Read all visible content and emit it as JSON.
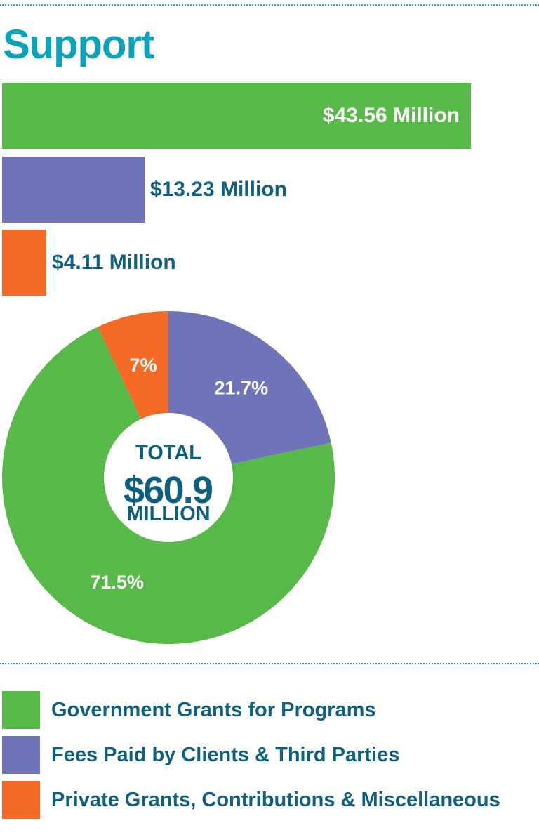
{
  "chart_data": [
    {
      "type": "bar",
      "orientation": "horizontal",
      "title": "Support",
      "unit": "Million USD",
      "categories": [
        "Government Grants for Programs",
        "Fees Paid by Clients & Third Parties",
        "Private Grants, Contributions & Miscellaneous"
      ],
      "values": [
        43.56,
        13.23,
        4.11
      ],
      "data_labels": [
        "$43.56 Million",
        "$13.23 Million",
        "$4.11 Million"
      ],
      "colors": [
        "#57b947",
        "#6f74b8",
        "#f26a25"
      ]
    },
    {
      "type": "pie",
      "style": "donut",
      "categories": [
        "Fees Paid by Clients & Third Parties",
        "Government Grants for Programs",
        "Private Grants, Contributions & Miscellaneous"
      ],
      "values": [
        21.7,
        71.5,
        7
      ],
      "data_labels": [
        "21.7%",
        "71.5%",
        "7%"
      ],
      "colors": [
        "#6f74b8",
        "#57b947",
        "#f26a25"
      ],
      "center_label": {
        "line1": "TOTAL",
        "line2": "$60.9",
        "line3": "MILLION"
      }
    }
  ],
  "legend": {
    "placement": "bottom",
    "items": [
      {
        "label": "Government Grants for Programs",
        "color": "#57b947"
      },
      {
        "label": "Fees Paid by Clients & Third Parties",
        "color": "#6f74b8"
      },
      {
        "label": "Private Grants, Contributions & Miscellaneous",
        "color": "#f26a25"
      }
    ]
  }
}
